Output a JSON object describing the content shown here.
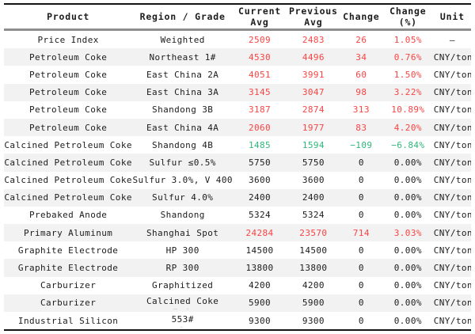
{
  "table": {
    "columns": [
      {
        "label": "Product"
      },
      {
        "label": "Region / Grade"
      },
      {
        "label": "Current\nAvg"
      },
      {
        "label": "Previous\nAvg"
      },
      {
        "label": "Change"
      },
      {
        "label": "Change\n(%)"
      },
      {
        "label": "Unit"
      }
    ],
    "trend_colors": {
      "up": "#fa4343",
      "down": "#2eb87a",
      "flat": "#1c1c1c"
    },
    "rows": [
      {
        "product": "Price Index",
        "region": "Weighted",
        "current": "2509",
        "previous": "2483",
        "change": "26",
        "pct": "1.05%",
        "unit": "—",
        "trend": "up"
      },
      {
        "product": "Petroleum Coke",
        "region": "Northeast 1#",
        "current": "4530",
        "previous": "4496",
        "change": "34",
        "pct": "0.76%",
        "unit": "CNY/ton",
        "trend": "up"
      },
      {
        "product": "Petroleum Coke",
        "region": "East China 2A",
        "current": "4051",
        "previous": "3991",
        "change": "60",
        "pct": "1.50%",
        "unit": "CNY/ton",
        "trend": "up"
      },
      {
        "product": "Petroleum Coke",
        "region": "East China 3A",
        "current": "3145",
        "previous": "3047",
        "change": "98",
        "pct": "3.22%",
        "unit": "CNY/ton",
        "trend": "up"
      },
      {
        "product": "Petroleum Coke",
        "region": "Shandong 3B",
        "current": "3187",
        "previous": "2874",
        "change": "313",
        "pct": "10.89%",
        "unit": "CNY/ton",
        "trend": "up"
      },
      {
        "product": "Petroleum Coke",
        "region": "East China 4A",
        "current": "2060",
        "previous": "1977",
        "change": "83",
        "pct": "4.20%",
        "unit": "CNY/ton",
        "trend": "up"
      },
      {
        "product": "Calcined Petroleum Coke",
        "region": "Shandong 4B",
        "current": "1485",
        "previous": "1594",
        "change": "−109",
        "pct": "−6.84%",
        "unit": "CNY/ton",
        "trend": "down"
      },
      {
        "product": "Calcined Petroleum Coke",
        "region": "Sulfur ≤0.5%",
        "current": "5750",
        "previous": "5750",
        "change": "0",
        "pct": "0.00%",
        "unit": "CNY/ton",
        "trend": "flat"
      },
      {
        "product": "Calcined Petroleum Coke",
        "region": "Sulfur 3.0%, V 400",
        "current": "3600",
        "previous": "3600",
        "change": "0",
        "pct": "0.00%",
        "unit": "CNY/ton",
        "trend": "flat"
      },
      {
        "product": "Calcined Petroleum Coke",
        "region": "Sulfur 4.0%",
        "current": "2400",
        "previous": "2400",
        "change": "0",
        "pct": "0.00%",
        "unit": "CNY/ton",
        "trend": "flat"
      },
      {
        "product": "Prebaked Anode",
        "region": "Shandong",
        "current": "5324",
        "previous": "5324",
        "change": "0",
        "pct": "0.00%",
        "unit": "CNY/ton",
        "trend": "flat"
      },
      {
        "product": "Primary Aluminum",
        "region": "Shanghai Spot",
        "current": "24284",
        "previous": "23570",
        "change": "714",
        "pct": "3.03%",
        "unit": "CNY/ton",
        "trend": "up"
      },
      {
        "product": "Graphite Electrode",
        "region": "HP 300",
        "current": "14500",
        "previous": "14500",
        "change": "0",
        "pct": "0.00%",
        "unit": "CNY/ton",
        "trend": "flat"
      },
      {
        "product": "Graphite Electrode",
        "region": "RP 300",
        "current": "13800",
        "previous": "13800",
        "change": "0",
        "pct": "0.00%",
        "unit": "CNY/ton",
        "trend": "flat"
      },
      {
        "product": "Carburizer",
        "region": "Graphitized",
        "current": "4200",
        "previous": "4200",
        "change": "0",
        "pct": "0.00%",
        "unit": "CNY/ton",
        "trend": "flat"
      },
      {
        "product": "Carburizer",
        "region": "Calcined Coke",
        "region_sub": "– ·",
        "current": "5900",
        "previous": "5900",
        "change": "0",
        "pct": "0.00%",
        "unit": "CNY/ton",
        "trend": "flat"
      },
      {
        "product": "Industrial Silicon",
        "region": "553#",
        "region_sub": "·",
        "current": "9300",
        "previous": "9300",
        "change": "0",
        "pct": "0.00%",
        "unit": "CNY/ton",
        "trend": "flat"
      }
    ]
  }
}
